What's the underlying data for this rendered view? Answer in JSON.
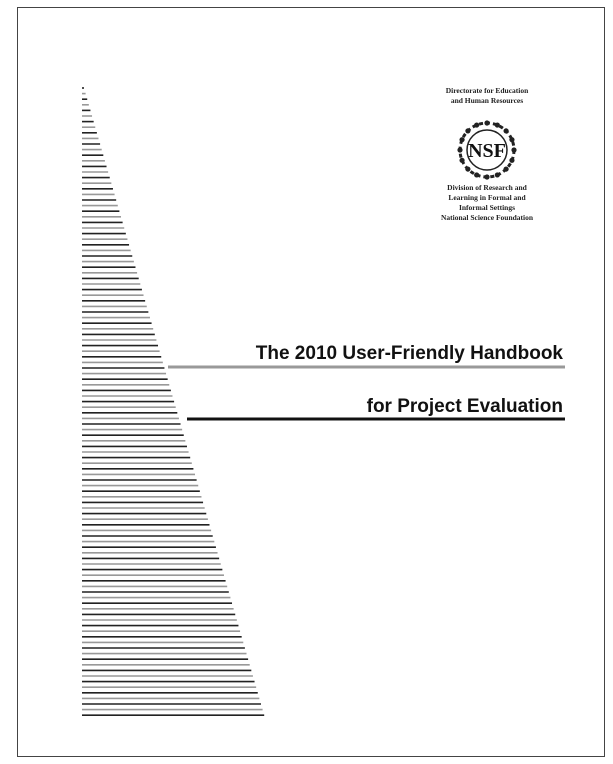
{
  "header": {
    "directorate": [
      "Directorate for Education",
      "and Human Resources"
    ],
    "logo": "NSF",
    "division": [
      "Division of Research and",
      "Learning in Formal and",
      "Informal Settings",
      "National Science Foundation"
    ]
  },
  "title": [
    "The 2010 User-Friendly Handbook",
    "for Project Evaluation"
  ]
}
